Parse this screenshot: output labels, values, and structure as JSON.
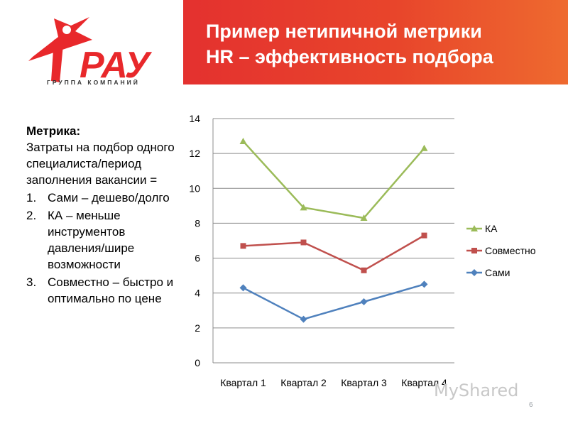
{
  "logo": {
    "brand": "РАУ",
    "subtitle": "ГРУППА КОМПАНИЙ",
    "accent_color": "#e8282b"
  },
  "header": {
    "title_line1": "Пример нетипичной метрики",
    "title_line2": "HR – эффективность подбора",
    "background_color": "#e8452b"
  },
  "left_panel": {
    "heading": "Метрика:",
    "formula": "Затраты на подбор одного специалиста/период заполнения вакансии =",
    "items": [
      {
        "number": "1.",
        "text": "Сами – дешево/долго"
      },
      {
        "number": "2.",
        "text": "КА – меньше инструментов давления/шире возможности"
      },
      {
        "number": "3.",
        "text": "Совместно – быстро и оптимально по цене"
      }
    ]
  },
  "chart_data": {
    "type": "line",
    "categories": [
      "Квартал 1",
      "Квартал 2",
      "Квартал 3",
      "Квартал 4"
    ],
    "series": [
      {
        "name": "КА",
        "values": [
          12.7,
          8.9,
          8.3,
          12.3
        ],
        "color": "#9bbb59",
        "marker": "triangle"
      },
      {
        "name": "Совместно",
        "values": [
          6.7,
          6.9,
          5.3,
          7.3
        ],
        "color": "#c0504d",
        "marker": "square"
      },
      {
        "name": "Сами",
        "values": [
          4.3,
          2.5,
          3.5,
          4.5
        ],
        "color": "#4f81bd",
        "marker": "diamond"
      }
    ],
    "ylim": [
      0,
      14
    ],
    "yticks": [
      "0",
      "2",
      "4",
      "6",
      "8",
      "10",
      "12",
      "14"
    ],
    "grid": true,
    "legend_position": "right"
  },
  "watermark": "MyShared",
  "page_number": "6"
}
